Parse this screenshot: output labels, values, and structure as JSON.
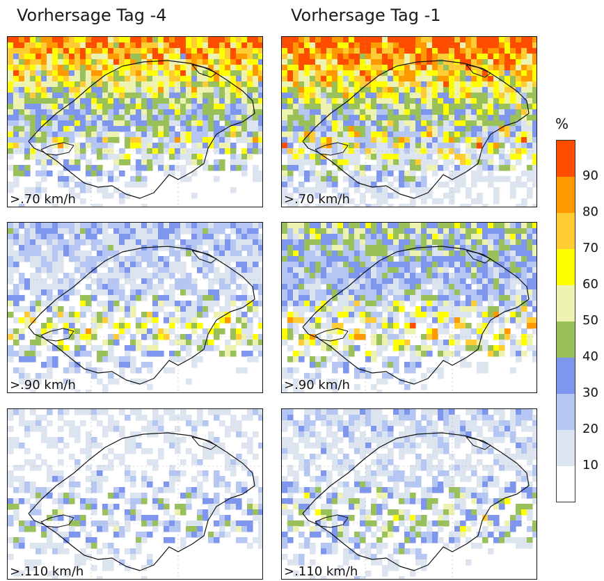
{
  "columns": [
    {
      "title": "Vorhersage Tag -4"
    },
    {
      "title": "Vorhersage Tag -1"
    }
  ],
  "rows": [
    {
      "threshold": ">.70 km/h"
    },
    {
      "threshold": ">.90 km/h"
    },
    {
      "threshold": ">.110 km/h"
    }
  ],
  "panels": [
    {
      "col": 0,
      "row": 0,
      "north_level": 0.85,
      "south_level": 0.55,
      "base_level": 0.05
    },
    {
      "col": 1,
      "row": 0,
      "north_level": 0.95,
      "south_level": 0.65,
      "base_level": 0.08
    },
    {
      "col": 0,
      "row": 1,
      "north_level": 0.25,
      "south_level": 0.55,
      "base_level": 0.04
    },
    {
      "col": 1,
      "row": 1,
      "north_level": 0.45,
      "south_level": 0.65,
      "base_level": 0.05
    },
    {
      "col": 0,
      "row": 2,
      "north_level": 0.1,
      "south_level": 0.35,
      "base_level": 0.02
    },
    {
      "col": 1,
      "row": 2,
      "north_level": 0.18,
      "south_level": 0.45,
      "base_level": 0.03
    }
  ],
  "colorbar": {
    "unit": "%",
    "ticks": [
      "90",
      "80",
      "70",
      "60",
      "50",
      "40",
      "30",
      "20",
      "10"
    ],
    "colors": [
      "#ffffff",
      "#dce4f0",
      "#b6c6f3",
      "#7f96ee",
      "#9ac05a",
      "#eef2b0",
      "#ffff00",
      "#ffcc33",
      "#ff9900",
      "#ff4d00"
    ]
  }
}
